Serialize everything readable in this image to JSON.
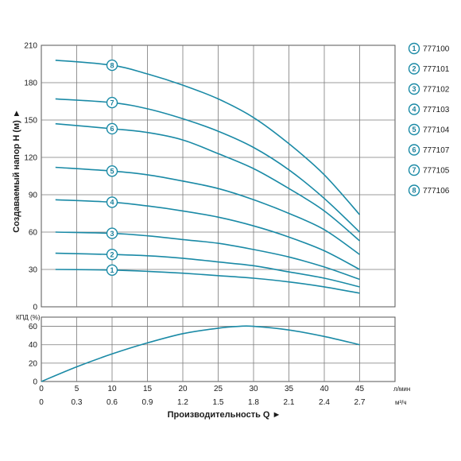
{
  "chart_data": [
    {
      "type": "line",
      "ylabel": "Создаваемый напор H (м) ►",
      "ylim": [
        0,
        210
      ],
      "y_ticks": [
        "0",
        "30",
        "60",
        "90",
        "120",
        "150",
        "180",
        "210"
      ],
      "x_ticks": [
        "0",
        "5",
        "10",
        "15",
        "20",
        "25",
        "30",
        "35",
        "40",
        "45"
      ],
      "xlim": [
        0,
        50
      ],
      "grid": true,
      "series_color": "#1a8aa6",
      "series": [
        {
          "marker": "1",
          "model": "777100",
          "marker_x": 10,
          "x": [
            2,
            10,
            15,
            20,
            25,
            30,
            35,
            40,
            45
          ],
          "y": [
            30,
            29.5,
            28.5,
            27,
            25,
            23,
            20,
            16,
            11
          ]
        },
        {
          "marker": "2",
          "model": "777101",
          "marker_x": 10,
          "x": [
            2,
            10,
            15,
            20,
            25,
            30,
            35,
            40,
            45
          ],
          "y": [
            43,
            42,
            41,
            39,
            36,
            33,
            28,
            23,
            16
          ]
        },
        {
          "marker": "3",
          "model": "777102",
          "marker_x": 10,
          "x": [
            2,
            10,
            15,
            20,
            25,
            30,
            35,
            40,
            45
          ],
          "y": [
            60,
            59,
            57,
            54,
            51,
            46,
            40,
            32,
            22
          ]
        },
        {
          "marker": "4",
          "model": "777103",
          "marker_x": 10,
          "x": [
            2,
            10,
            15,
            20,
            25,
            30,
            35,
            40,
            45
          ],
          "y": [
            86,
            84,
            81,
            77,
            72,
            65,
            56,
            45,
            30
          ]
        },
        {
          "marker": "5",
          "model": "777104",
          "marker_x": 10,
          "x": [
            2,
            10,
            15,
            20,
            25,
            30,
            35,
            40,
            45
          ],
          "y": [
            112,
            109,
            106,
            101,
            95,
            86,
            75,
            62,
            42
          ]
        },
        {
          "marker": "6",
          "model": "777107",
          "marker_x": 10,
          "x": [
            2,
            10,
            15,
            20,
            25,
            30,
            35,
            40,
            45
          ],
          "y": [
            147,
            143,
            140,
            134,
            123,
            111,
            95,
            77,
            53
          ]
        },
        {
          "marker": "7",
          "model": "777105",
          "marker_x": 10,
          "x": [
            2,
            10,
            15,
            20,
            25,
            30,
            35,
            40,
            45
          ],
          "y": [
            167,
            164,
            159,
            151,
            141,
            128,
            110,
            87,
            60
          ]
        },
        {
          "marker": "8",
          "model": "777106",
          "marker_x": 10,
          "x": [
            2,
            10,
            15,
            20,
            25,
            30,
            35,
            40,
            45
          ],
          "y": [
            198,
            194,
            187,
            178,
            167,
            152,
            131,
            106,
            74
          ]
        }
      ]
    },
    {
      "type": "line",
      "ylabel": "КПД (%)",
      "ylim": [
        0,
        70
      ],
      "y_ticks": [
        "0",
        "20",
        "40",
        "60"
      ],
      "x_ticks": [
        "0",
        "5",
        "10",
        "15",
        "20",
        "25",
        "30",
        "35",
        "40",
        "45"
      ],
      "x_unit": "л/мин",
      "x2_ticks": [
        "0",
        "0.3",
        "0.6",
        "0.9",
        "1.2",
        "1.5",
        "1.8",
        "2.1",
        "2.4",
        "2.7"
      ],
      "x2_unit": "м³/ч",
      "xlabel": "Производительность Q ►",
      "xlim": [
        0,
        50
      ],
      "grid": true,
      "series": [
        {
          "x": [
            0,
            5,
            10,
            15,
            20,
            25,
            28,
            30,
            35,
            40,
            45
          ],
          "y": [
            0,
            16,
            30,
            42,
            52,
            58,
            60,
            60,
            56,
            49,
            40
          ]
        }
      ]
    }
  ]
}
